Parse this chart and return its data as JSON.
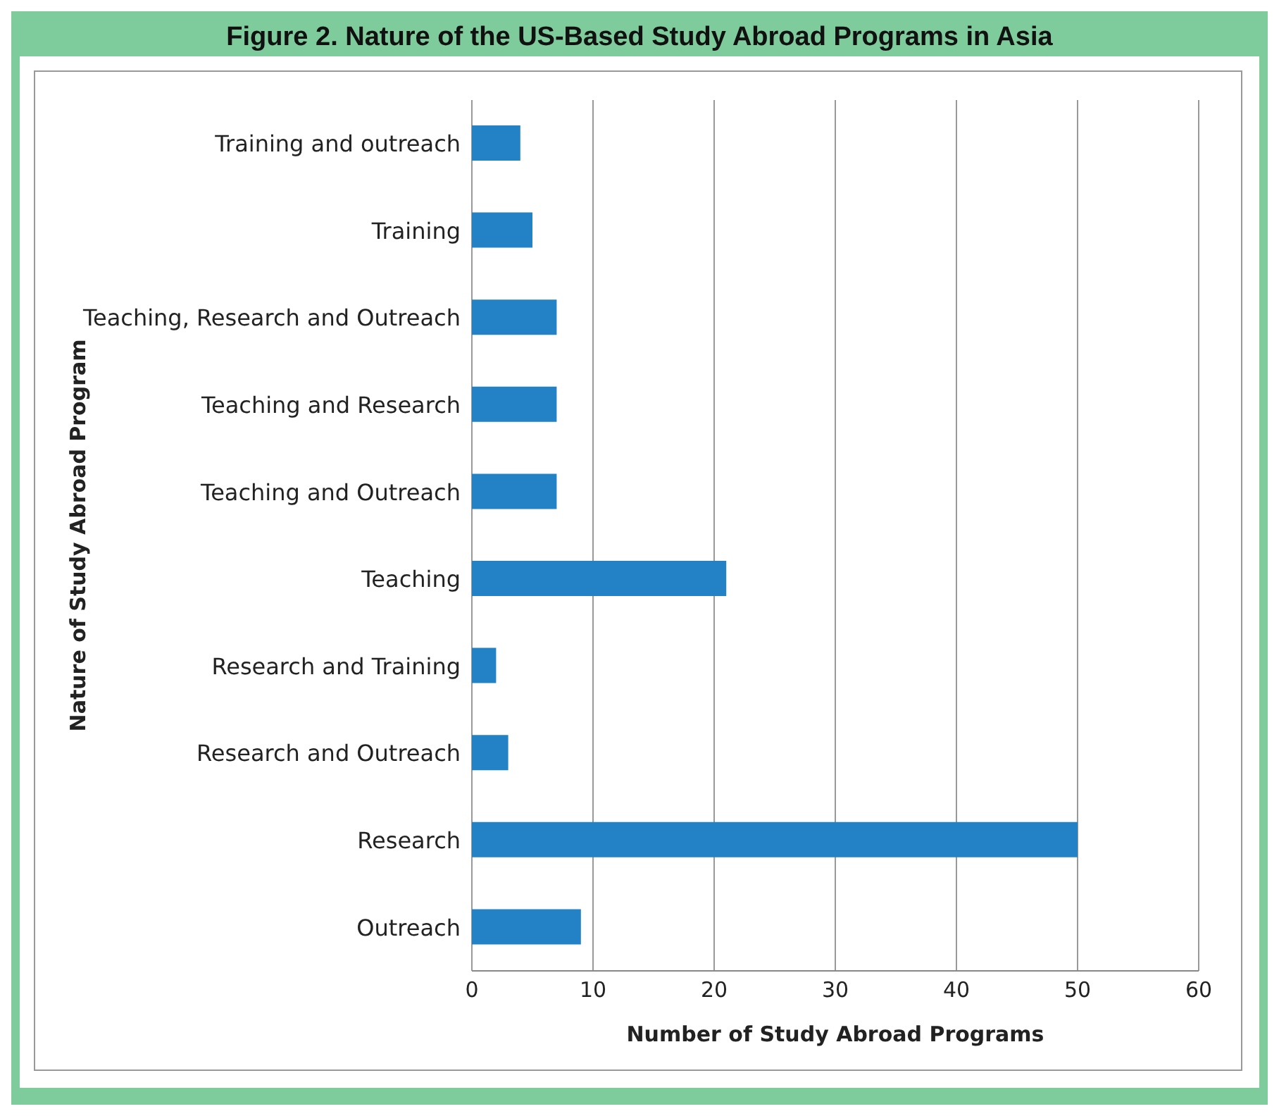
{
  "chart_data": {
    "type": "bar",
    "orientation": "horizontal",
    "title": "Figure 2. Nature of the US-Based Study Abroad Programs in Asia",
    "xlabel": "Number of Study Abroad Programs",
    "ylabel": "Nature of Study Abroad Program",
    "categories": [
      "Training and outreach",
      "Training",
      "Teaching, Research and Outreach",
      "Teaching and Research",
      "Teaching and Outreach",
      "Teaching",
      "Research and Training",
      "Research and Outreach",
      "Research",
      "Outreach"
    ],
    "values": [
      4,
      5,
      7,
      7,
      7,
      21,
      2,
      3,
      50,
      9
    ],
    "color": "#2382c5",
    "xlim": [
      0,
      60
    ],
    "xticks": [
      0,
      10,
      20,
      30,
      40,
      50,
      60
    ],
    "grid": "x"
  }
}
